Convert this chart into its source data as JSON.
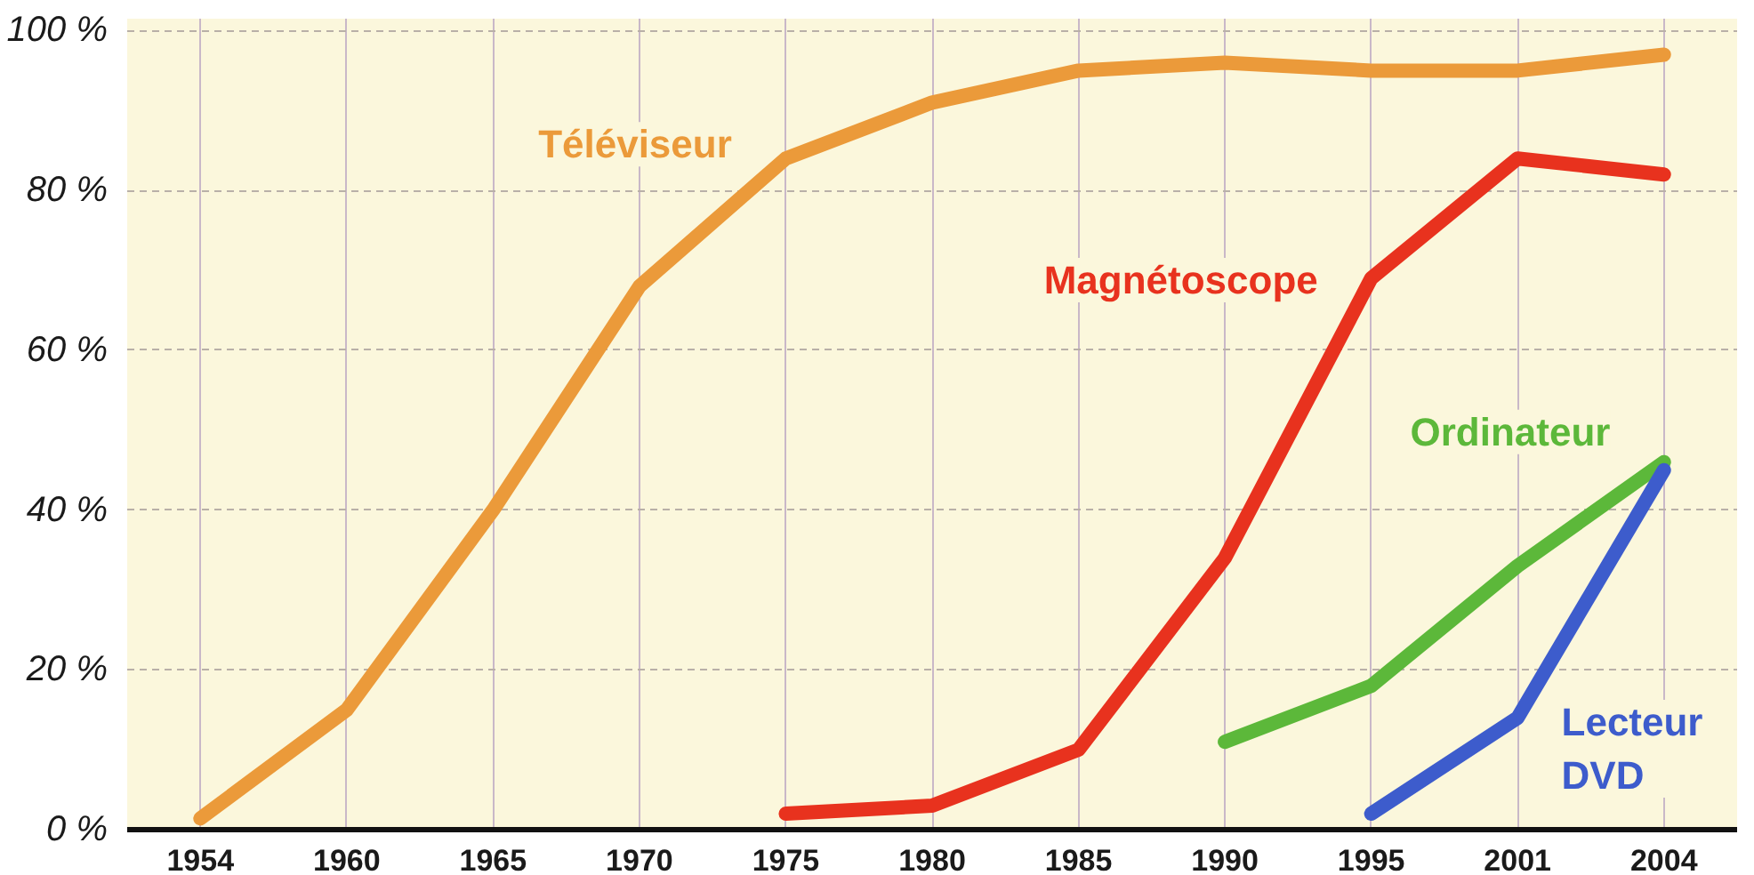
{
  "chart_data": {
    "type": "line",
    "categories": [
      "1954",
      "1960",
      "1965",
      "1970",
      "1975",
      "1980",
      "1985",
      "1990",
      "1995",
      "2001",
      "2004"
    ],
    "ylim": [
      0,
      100
    ],
    "yticks": [
      {
        "value": 0,
        "label": "0 %"
      },
      {
        "value": 20,
        "label": "20 %"
      },
      {
        "value": 40,
        "label": "40 %"
      },
      {
        "value": 60,
        "label": "60 %"
      },
      {
        "value": 80,
        "label": "80 %"
      },
      {
        "value": 100,
        "label": "100 %"
      }
    ],
    "grid": true,
    "line_style": "solid",
    "marker": "none",
    "series": [
      {
        "name": "Téléviseur",
        "color": "#eb9a3a",
        "values": [
          1.4,
          15,
          40,
          68,
          84,
          91,
          95,
          96,
          95,
          95,
          97
        ]
      },
      {
        "name": "Magnétoscope",
        "color": "#e8321e",
        "values": [
          null,
          null,
          null,
          null,
          2,
          3,
          10,
          34,
          69,
          84,
          82
        ]
      },
      {
        "name": "Ordinateur",
        "color": "#5cb83a",
        "values": [
          null,
          null,
          null,
          null,
          null,
          null,
          null,
          11,
          18,
          33,
          46
        ]
      },
      {
        "name": "Lecteur\nDVD",
        "color": "#3d5ccc",
        "values": [
          null,
          null,
          null,
          null,
          null,
          null,
          null,
          null,
          2,
          14,
          45
        ]
      }
    ]
  }
}
